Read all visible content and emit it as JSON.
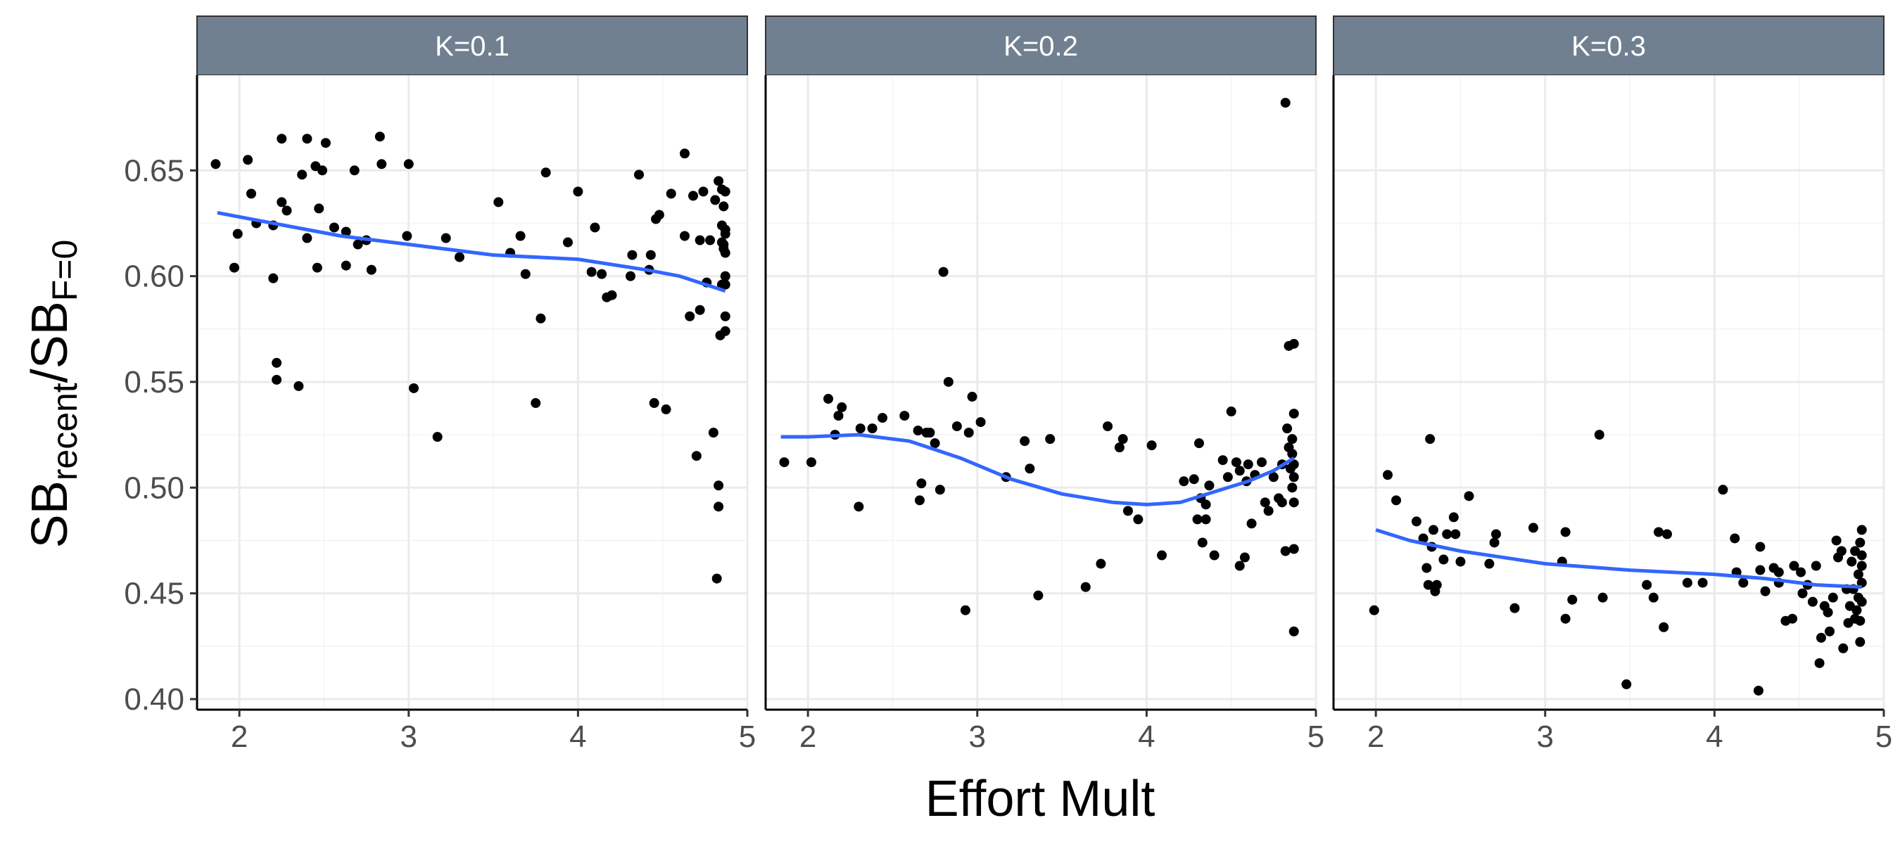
{
  "chart_data": {
    "type": "scatter",
    "facet_strip_color": "#708090",
    "point_color": "#000000",
    "smooth_color": "#3366FF",
    "xlabel": "Effort Mult",
    "ylabel": {
      "base1": "SB",
      "sub1": "recent",
      "slash": "/",
      "base2": "SB",
      "sub2": "F=0"
    },
    "xlim": [
      1.75,
      5.0
    ],
    "ylim": [
      0.395,
      0.695
    ],
    "x_ticks": [
      2,
      3,
      4,
      5
    ],
    "y_ticks": [
      0.4,
      0.45,
      0.5,
      0.55,
      0.6,
      0.65
    ],
    "x_tick_labels": [
      "2",
      "3",
      "4",
      "5"
    ],
    "y_tick_labels": [
      "0.40",
      "0.45",
      "0.50",
      "0.55",
      "0.60",
      "0.65"
    ],
    "grid": true,
    "panels": [
      {
        "label": "K=0.1",
        "smooth": [
          [
            1.87,
            0.63
          ],
          [
            2.2,
            0.625
          ],
          [
            2.6,
            0.619
          ],
          [
            3.0,
            0.615
          ],
          [
            3.5,
            0.61
          ],
          [
            4.0,
            0.608
          ],
          [
            4.4,
            0.603
          ],
          [
            4.6,
            0.6
          ],
          [
            4.87,
            0.593
          ]
        ],
        "points": [
          [
            1.86,
            0.653
          ],
          [
            1.97,
            0.604
          ],
          [
            1.99,
            0.62
          ],
          [
            2.05,
            0.655
          ],
          [
            2.07,
            0.639
          ],
          [
            2.1,
            0.625
          ],
          [
            2.2,
            0.599
          ],
          [
            2.2,
            0.624
          ],
          [
            2.22,
            0.559
          ],
          [
            2.22,
            0.551
          ],
          [
            2.25,
            0.665
          ],
          [
            2.25,
            0.635
          ],
          [
            2.28,
            0.631
          ],
          [
            2.35,
            0.548
          ],
          [
            2.37,
            0.648
          ],
          [
            2.4,
            0.665
          ],
          [
            2.4,
            0.618
          ],
          [
            2.45,
            0.652
          ],
          [
            2.46,
            0.604
          ],
          [
            2.47,
            0.632
          ],
          [
            2.49,
            0.65
          ],
          [
            2.51,
            0.663
          ],
          [
            2.56,
            0.623
          ],
          [
            2.63,
            0.605
          ],
          [
            2.63,
            0.621
          ],
          [
            2.68,
            0.65
          ],
          [
            2.7,
            0.615
          ],
          [
            2.75,
            0.617
          ],
          [
            2.78,
            0.603
          ],
          [
            2.83,
            0.666
          ],
          [
            2.84,
            0.653
          ],
          [
            2.99,
            0.619
          ],
          [
            3.0,
            0.653
          ],
          [
            3.03,
            0.547
          ],
          [
            3.17,
            0.524
          ],
          [
            3.22,
            0.618
          ],
          [
            3.3,
            0.609
          ],
          [
            3.53,
            0.635
          ],
          [
            3.6,
            0.611
          ],
          [
            3.66,
            0.619
          ],
          [
            3.69,
            0.601
          ],
          [
            3.75,
            0.54
          ],
          [
            3.78,
            0.58
          ],
          [
            3.81,
            0.649
          ],
          [
            3.94,
            0.616
          ],
          [
            4.0,
            0.64
          ],
          [
            4.08,
            0.602
          ],
          [
            4.1,
            0.623
          ],
          [
            4.14,
            0.601
          ],
          [
            4.17,
            0.59
          ],
          [
            4.2,
            0.591
          ],
          [
            4.31,
            0.6
          ],
          [
            4.32,
            0.61
          ],
          [
            4.36,
            0.648
          ],
          [
            4.42,
            0.603
          ],
          [
            4.43,
            0.61
          ],
          [
            4.45,
            0.54
          ],
          [
            4.46,
            0.627
          ],
          [
            4.48,
            0.629
          ],
          [
            4.52,
            0.537
          ],
          [
            4.55,
            0.639
          ],
          [
            4.63,
            0.619
          ],
          [
            4.63,
            0.658
          ],
          [
            4.66,
            0.581
          ],
          [
            4.68,
            0.638
          ],
          [
            4.7,
            0.515
          ],
          [
            4.72,
            0.584
          ],
          [
            4.72,
            0.617
          ],
          [
            4.74,
            0.64
          ],
          [
            4.76,
            0.597
          ],
          [
            4.78,
            0.617
          ],
          [
            4.8,
            0.526
          ],
          [
            4.81,
            0.636
          ],
          [
            4.82,
            0.457
          ],
          [
            4.83,
            0.491
          ],
          [
            4.83,
            0.501
          ],
          [
            4.83,
            0.645
          ],
          [
            4.84,
            0.572
          ],
          [
            4.85,
            0.596
          ],
          [
            4.85,
            0.624
          ],
          [
            4.85,
            0.641
          ],
          [
            4.85,
            0.616
          ],
          [
            4.86,
            0.613
          ],
          [
            4.86,
            0.633
          ],
          [
            4.87,
            0.62
          ],
          [
            4.87,
            0.581
          ],
          [
            4.87,
            0.6
          ],
          [
            4.87,
            0.574
          ],
          [
            4.87,
            0.611
          ],
          [
            4.87,
            0.64
          ],
          [
            4.87,
            0.622
          ],
          [
            4.87,
            0.596
          ],
          [
            4.86,
            0.615
          ]
        ]
      },
      {
        "label": "K=0.2",
        "smooth": [
          [
            1.84,
            0.524
          ],
          [
            2.0,
            0.524
          ],
          [
            2.3,
            0.525
          ],
          [
            2.6,
            0.522
          ],
          [
            2.9,
            0.514
          ],
          [
            3.2,
            0.504
          ],
          [
            3.5,
            0.497
          ],
          [
            3.8,
            0.493
          ],
          [
            4.0,
            0.492
          ],
          [
            4.2,
            0.493
          ],
          [
            4.4,
            0.498
          ],
          [
            4.6,
            0.503
          ],
          [
            4.75,
            0.508
          ],
          [
            4.87,
            0.514
          ]
        ],
        "points": [
          [
            1.86,
            0.512
          ],
          [
            2.02,
            0.512
          ],
          [
            2.12,
            0.542
          ],
          [
            2.16,
            0.525
          ],
          [
            2.18,
            0.534
          ],
          [
            2.2,
            0.538
          ],
          [
            2.3,
            0.491
          ],
          [
            2.31,
            0.528
          ],
          [
            2.38,
            0.528
          ],
          [
            2.44,
            0.533
          ],
          [
            2.57,
            0.534
          ],
          [
            2.65,
            0.527
          ],
          [
            2.66,
            0.494
          ],
          [
            2.67,
            0.502
          ],
          [
            2.7,
            0.526
          ],
          [
            2.72,
            0.526
          ],
          [
            2.75,
            0.521
          ],
          [
            2.78,
            0.499
          ],
          [
            2.8,
            0.602
          ],
          [
            2.83,
            0.55
          ],
          [
            2.88,
            0.529
          ],
          [
            2.93,
            0.442
          ],
          [
            2.95,
            0.526
          ],
          [
            2.97,
            0.543
          ],
          [
            3.02,
            0.531
          ],
          [
            3.17,
            0.505
          ],
          [
            3.28,
            0.522
          ],
          [
            3.31,
            0.509
          ],
          [
            3.36,
            0.449
          ],
          [
            3.43,
            0.523
          ],
          [
            3.64,
            0.453
          ],
          [
            3.73,
            0.464
          ],
          [
            3.77,
            0.529
          ],
          [
            3.84,
            0.519
          ],
          [
            3.86,
            0.523
          ],
          [
            3.89,
            0.489
          ],
          [
            3.95,
            0.485
          ],
          [
            4.03,
            0.52
          ],
          [
            4.09,
            0.468
          ],
          [
            4.22,
            0.503
          ],
          [
            4.28,
            0.504
          ],
          [
            4.3,
            0.485
          ],
          [
            4.31,
            0.521
          ],
          [
            4.32,
            0.495
          ],
          [
            4.33,
            0.474
          ],
          [
            4.35,
            0.485
          ],
          [
            4.35,
            0.492
          ],
          [
            4.37,
            0.501
          ],
          [
            4.4,
            0.468
          ],
          [
            4.45,
            0.513
          ],
          [
            4.48,
            0.505
          ],
          [
            4.5,
            0.536
          ],
          [
            4.53,
            0.512
          ],
          [
            4.55,
            0.508
          ],
          [
            4.55,
            0.463
          ],
          [
            4.58,
            0.467
          ],
          [
            4.59,
            0.503
          ],
          [
            4.6,
            0.511
          ],
          [
            4.62,
            0.483
          ],
          [
            4.64,
            0.506
          ],
          [
            4.68,
            0.512
          ],
          [
            4.7,
            0.493
          ],
          [
            4.72,
            0.489
          ],
          [
            4.75,
            0.505
          ],
          [
            4.78,
            0.495
          ],
          [
            4.8,
            0.493
          ],
          [
            4.8,
            0.511
          ],
          [
            4.82,
            0.682
          ],
          [
            4.82,
            0.47
          ],
          [
            4.83,
            0.528
          ],
          [
            4.84,
            0.567
          ],
          [
            4.84,
            0.519
          ],
          [
            4.85,
            0.509
          ],
          [
            4.86,
            0.516
          ],
          [
            4.86,
            0.5
          ],
          [
            4.87,
            0.432
          ],
          [
            4.87,
            0.568
          ],
          [
            4.87,
            0.535
          ],
          [
            4.87,
            0.511
          ],
          [
            4.87,
            0.505
          ],
          [
            4.87,
            0.493
          ],
          [
            4.87,
            0.471
          ],
          [
            4.86,
            0.523
          ]
        ]
      },
      {
        "label": "K=0.3",
        "smooth": [
          [
            2.0,
            0.48
          ],
          [
            2.2,
            0.475
          ],
          [
            2.5,
            0.47
          ],
          [
            3.0,
            0.464
          ],
          [
            3.5,
            0.461
          ],
          [
            4.0,
            0.459
          ],
          [
            4.3,
            0.457
          ],
          [
            4.6,
            0.454
          ],
          [
            4.87,
            0.453
          ]
        ],
        "points": [
          [
            1.99,
            0.442
          ],
          [
            2.07,
            0.506
          ],
          [
            2.12,
            0.494
          ],
          [
            2.24,
            0.484
          ],
          [
            2.28,
            0.476
          ],
          [
            2.3,
            0.462
          ],
          [
            2.31,
            0.454
          ],
          [
            2.32,
            0.523
          ],
          [
            2.33,
            0.472
          ],
          [
            2.34,
            0.48
          ],
          [
            2.35,
            0.451
          ],
          [
            2.36,
            0.454
          ],
          [
            2.4,
            0.466
          ],
          [
            2.42,
            0.478
          ],
          [
            2.46,
            0.486
          ],
          [
            2.47,
            0.478
          ],
          [
            2.5,
            0.465
          ],
          [
            2.55,
            0.496
          ],
          [
            2.67,
            0.464
          ],
          [
            2.7,
            0.474
          ],
          [
            2.71,
            0.478
          ],
          [
            2.82,
            0.443
          ],
          [
            2.93,
            0.481
          ],
          [
            3.1,
            0.465
          ],
          [
            3.12,
            0.479
          ],
          [
            3.12,
            0.438
          ],
          [
            3.16,
            0.447
          ],
          [
            3.32,
            0.525
          ],
          [
            3.34,
            0.448
          ],
          [
            3.48,
            0.407
          ],
          [
            3.6,
            0.454
          ],
          [
            3.64,
            0.448
          ],
          [
            3.67,
            0.479
          ],
          [
            3.7,
            0.434
          ],
          [
            3.72,
            0.478
          ],
          [
            3.84,
            0.455
          ],
          [
            3.93,
            0.455
          ],
          [
            4.05,
            0.499
          ],
          [
            4.12,
            0.476
          ],
          [
            4.13,
            0.46
          ],
          [
            4.17,
            0.455
          ],
          [
            4.26,
            0.404
          ],
          [
            4.27,
            0.461
          ],
          [
            4.27,
            0.472
          ],
          [
            4.3,
            0.451
          ],
          [
            4.35,
            0.462
          ],
          [
            4.38,
            0.455
          ],
          [
            4.38,
            0.46
          ],
          [
            4.42,
            0.437
          ],
          [
            4.46,
            0.438
          ],
          [
            4.47,
            0.463
          ],
          [
            4.51,
            0.46
          ],
          [
            4.52,
            0.45
          ],
          [
            4.55,
            0.454
          ],
          [
            4.58,
            0.446
          ],
          [
            4.6,
            0.463
          ],
          [
            4.62,
            0.417
          ],
          [
            4.63,
            0.429
          ],
          [
            4.65,
            0.444
          ],
          [
            4.67,
            0.441
          ],
          [
            4.68,
            0.432
          ],
          [
            4.7,
            0.448
          ],
          [
            4.72,
            0.475
          ],
          [
            4.73,
            0.467
          ],
          [
            4.75,
            0.47
          ],
          [
            4.76,
            0.424
          ],
          [
            4.78,
            0.452
          ],
          [
            4.79,
            0.436
          ],
          [
            4.8,
            0.444
          ],
          [
            4.81,
            0.465
          ],
          [
            4.82,
            0.452
          ],
          [
            4.83,
            0.47
          ],
          [
            4.83,
            0.438
          ],
          [
            4.84,
            0.442
          ],
          [
            4.85,
            0.448
          ],
          [
            4.85,
            0.459
          ],
          [
            4.86,
            0.437
          ],
          [
            4.86,
            0.474
          ],
          [
            4.87,
            0.48
          ],
          [
            4.87,
            0.468
          ],
          [
            4.87,
            0.446
          ],
          [
            4.87,
            0.455
          ],
          [
            4.87,
            0.463
          ],
          [
            4.86,
            0.427
          ]
        ]
      }
    ]
  }
}
